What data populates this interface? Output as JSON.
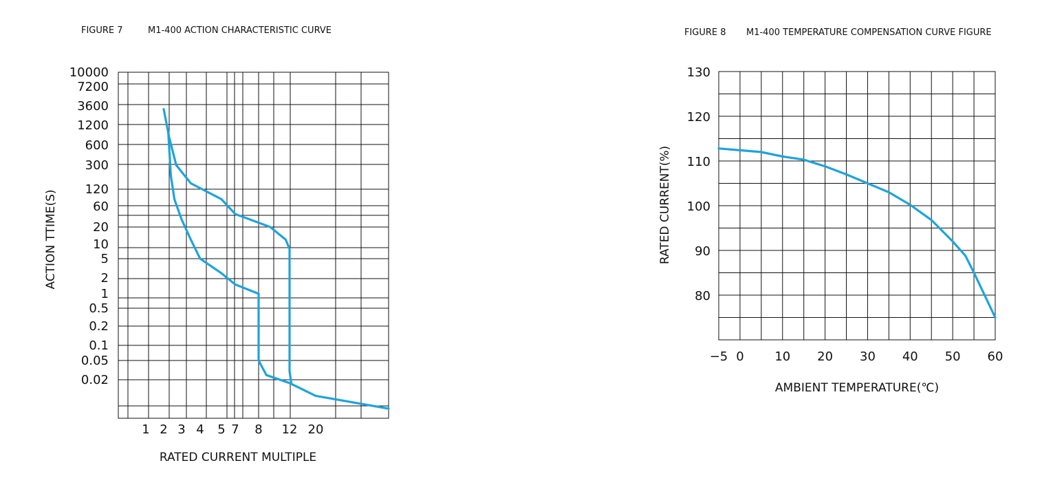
{
  "chart_data": [
    {
      "type": "line",
      "figure_label": "FIGURE 7",
      "title": "M1-400 ACTION CHARACTERISTIC CURVE",
      "xlabel": "RATED CURRENT MULTIPLE",
      "ylabel": "ACTION TTIME(S)",
      "x_ticks": [
        "1",
        "2",
        "3",
        "4",
        "5",
        "7",
        "8",
        "12",
        "20"
      ],
      "y_ticks": [
        "10000",
        "7200",
        "3600",
        "1200",
        "600",
        "300",
        "120",
        "60",
        "20",
        "10",
        "5",
        "2",
        "1",
        "0.5",
        "0.2",
        "0.1",
        "0.05",
        "0.02"
      ],
      "grid": true,
      "series": [
        {
          "values": [
            {
              "x": 2.25,
              "y": 1000
            },
            {
              "x": 2.4,
              "y": 200
            },
            {
              "x": 2.6,
              "y": 80
            },
            {
              "x": 3,
              "y": 30
            },
            {
              "x": 3.5,
              "y": 12
            },
            {
              "x": 4,
              "y": 5
            },
            {
              "x": 5,
              "y": 2.5
            },
            {
              "x": 7,
              "y": 1.5
            },
            {
              "x": 8,
              "y": 1
            },
            {
              "x": 8,
              "y": 0.05
            },
            {
              "x": 9,
              "y": 0.025
            },
            {
              "x": 12,
              "y": 0.018
            },
            {
              "x": 20,
              "y": 0.012
            },
            {
              "x": 30,
              "y": 0.008
            }
          ]
        },
        {
          "values": [
            {
              "x": 2.0,
              "y": 3000
            },
            {
              "x": 2.3,
              "y": 800
            },
            {
              "x": 2.7,
              "y": 300
            },
            {
              "x": 3.5,
              "y": 150
            },
            {
              "x": 5,
              "y": 80
            },
            {
              "x": 7,
              "y": 40
            },
            {
              "x": 9.5,
              "y": 20
            },
            {
              "x": 11.5,
              "y": 12
            },
            {
              "x": 12,
              "y": 8
            },
            {
              "x": 12,
              "y": 0.03
            },
            {
              "x": 12.5,
              "y": 0.018
            }
          ]
        }
      ]
    },
    {
      "type": "line",
      "figure_label": "FIGURE 8",
      "title": "M1-400 TEMPERATURE COMPENSATION CURVE FIGURE",
      "xlabel": "AMBIENT TEMPERATURE(℃)",
      "ylabel": "RATED CURRENT(%)",
      "x_ticks": [
        "−5",
        "0",
        "10",
        "20",
        "30",
        "40",
        "50",
        "60"
      ],
      "y_ticks": [
        "130",
        "120",
        "110",
        "100",
        "90",
        "80"
      ],
      "grid": true,
      "series": [
        {
          "values": [
            {
              "x": -5,
              "y": 112.8
            },
            {
              "x": 0,
              "y": 112.4
            },
            {
              "x": 5,
              "y": 112.0
            },
            {
              "x": 10,
              "y": 111.0
            },
            {
              "x": 15,
              "y": 110.3
            },
            {
              "x": 20,
              "y": 108.8
            },
            {
              "x": 25,
              "y": 107.0
            },
            {
              "x": 30,
              "y": 105.0
            },
            {
              "x": 35,
              "y": 103.0
            },
            {
              "x": 40,
              "y": 100.2
            },
            {
              "x": 45,
              "y": 96.8
            },
            {
              "x": 50,
              "y": 92.0
            },
            {
              "x": 53,
              "y": 88.8
            },
            {
              "x": 55,
              "y": 85.0
            },
            {
              "x": 60,
              "y": 75.0
            }
          ]
        }
      ]
    }
  ]
}
